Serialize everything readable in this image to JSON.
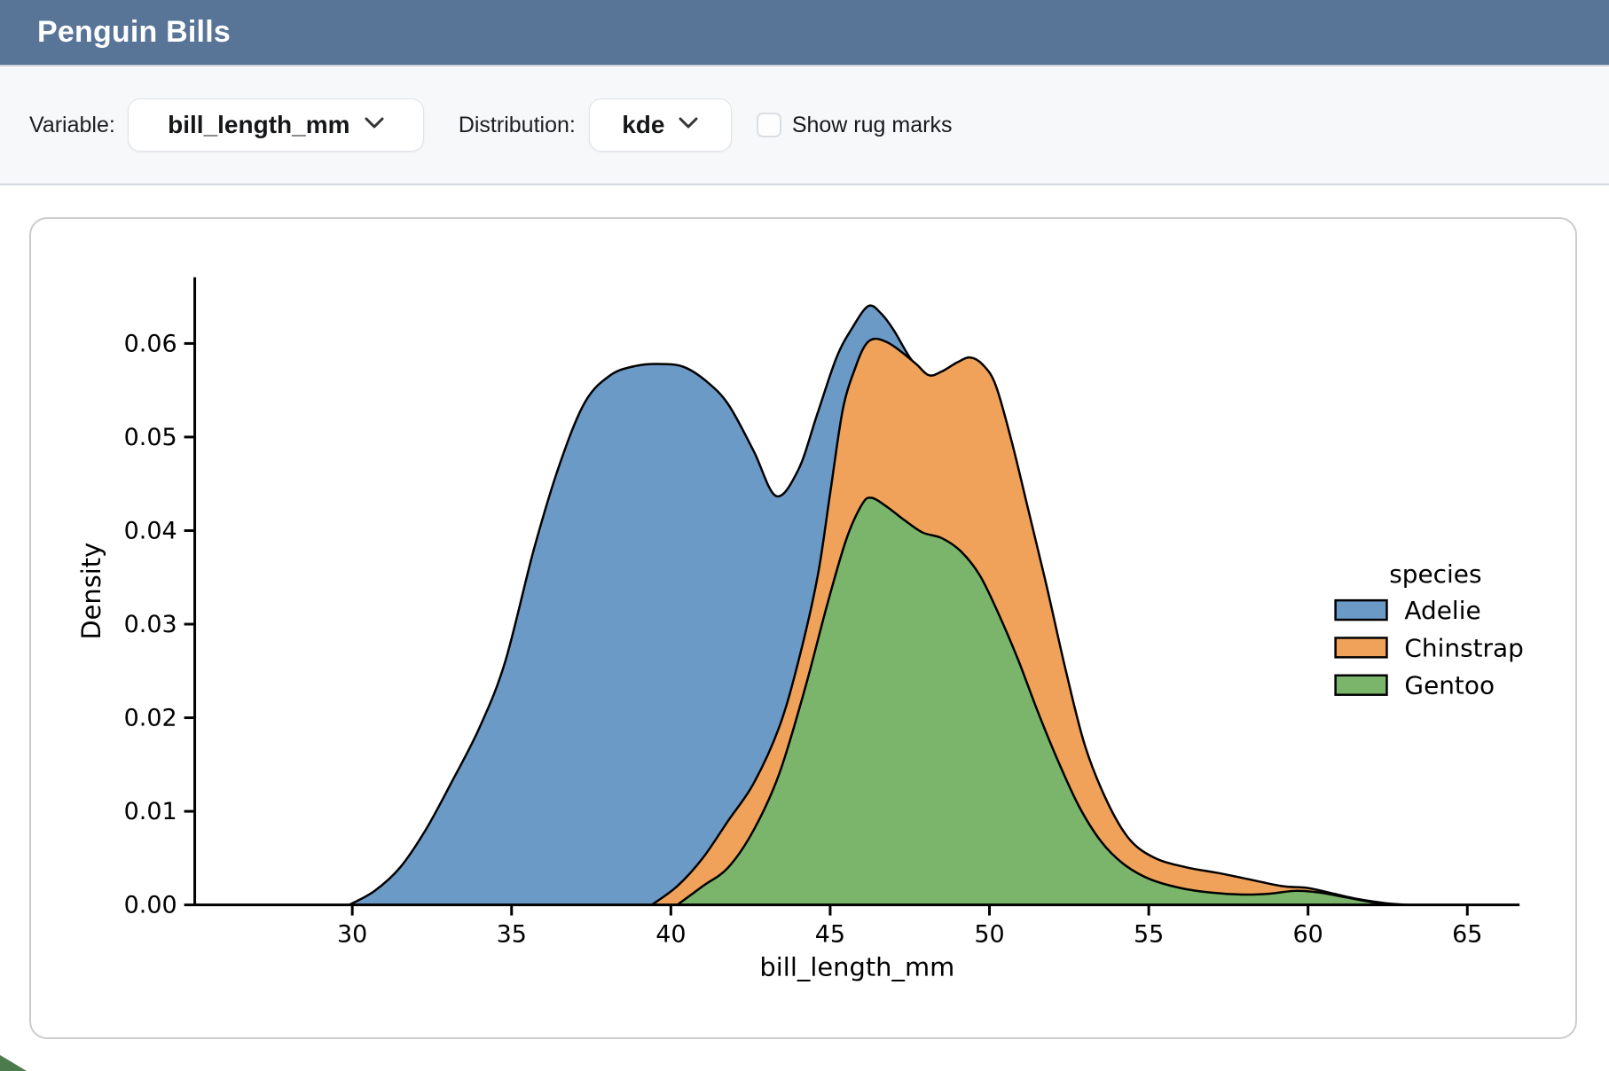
{
  "header": {
    "title": "Penguin Bills"
  },
  "controls": {
    "variable_label": "Variable:",
    "variable_value": "bill_length_mm",
    "distribution_label": "Distribution:",
    "distribution_value": "kde",
    "rug_label": "Show rug marks",
    "rug_checked": false
  },
  "colors": {
    "header_bg": "#587497",
    "adelie": "#6c9ac6",
    "chinstrap": "#f0a25b",
    "gentoo": "#7ab56b",
    "outline": "#000000"
  },
  "chart_data": {
    "type": "area",
    "subtype": "kde-density",
    "title": "",
    "xlabel": "bill_length_mm",
    "ylabel": "Density",
    "xlim": [
      25.1,
      66.6
    ],
    "ylim": [
      0,
      0.067
    ],
    "grid": false,
    "xticks": [
      30,
      35,
      40,
      45,
      50,
      55,
      60,
      65
    ],
    "ytick_labels": [
      "0.00",
      "0.01",
      "0.02",
      "0.03",
      "0.04",
      "0.05",
      "0.06"
    ],
    "legend": {
      "title": "species",
      "position": "center right",
      "entries": [
        "Adelie",
        "Chinstrap",
        "Gentoo"
      ]
    },
    "series": [
      {
        "name": "Adelie",
        "color": "#6c9ac6",
        "points": [
          [
            29.9,
            0
          ],
          [
            30.7,
            0.0015
          ],
          [
            31.5,
            0.004
          ],
          [
            32.3,
            0.008
          ],
          [
            33.1,
            0.013
          ],
          [
            34.0,
            0.019
          ],
          [
            34.8,
            0.026
          ],
          [
            35.7,
            0.038
          ],
          [
            36.5,
            0.047
          ],
          [
            37.3,
            0.0537
          ],
          [
            38.1,
            0.0566
          ],
          [
            38.9,
            0.0576
          ],
          [
            39.7,
            0.0578
          ],
          [
            40.4,
            0.0575
          ],
          [
            41.1,
            0.056
          ],
          [
            41.8,
            0.0535
          ],
          [
            42.6,
            0.0485
          ],
          [
            43.3,
            0.0437
          ],
          [
            44.0,
            0.0465
          ],
          [
            44.6,
            0.0525
          ],
          [
            45.2,
            0.0585
          ],
          [
            45.7,
            0.0617
          ],
          [
            46.2,
            0.064
          ],
          [
            46.6,
            0.0632
          ],
          [
            47.0,
            0.0614
          ],
          [
            47.5,
            0.0585
          ],
          [
            48.0,
            0.0565
          ],
          [
            48.6,
            0.0552
          ],
          [
            49.3,
            0.0495
          ],
          [
            50.0,
            0.0395
          ],
          [
            50.8,
            0.026
          ],
          [
            51.6,
            0.013
          ],
          [
            52.4,
            0.005
          ],
          [
            53.2,
            0.0015
          ],
          [
            54.0,
            0
          ]
        ]
      },
      {
        "name": "Chinstrap",
        "color": "#f0a25b",
        "points": [
          [
            39.4,
            0
          ],
          [
            40.2,
            0.002
          ],
          [
            41.0,
            0.005
          ],
          [
            41.8,
            0.009
          ],
          [
            42.6,
            0.013
          ],
          [
            43.4,
            0.019
          ],
          [
            44.0,
            0.026
          ],
          [
            44.6,
            0.035
          ],
          [
            45.0,
            0.044
          ],
          [
            45.4,
            0.053
          ],
          [
            45.8,
            0.0575
          ],
          [
            46.1,
            0.0598
          ],
          [
            46.4,
            0.0605
          ],
          [
            46.8,
            0.0601
          ],
          [
            47.2,
            0.0592
          ],
          [
            47.7,
            0.0578
          ],
          [
            48.1,
            0.0566
          ],
          [
            48.5,
            0.057
          ],
          [
            49.0,
            0.058
          ],
          [
            49.4,
            0.0585
          ],
          [
            49.8,
            0.0577
          ],
          [
            50.2,
            0.0555
          ],
          [
            50.7,
            0.0495
          ],
          [
            51.2,
            0.0425
          ],
          [
            51.8,
            0.034
          ],
          [
            52.4,
            0.025
          ],
          [
            53.0,
            0.017
          ],
          [
            53.7,
            0.011
          ],
          [
            54.4,
            0.007
          ],
          [
            55.2,
            0.005
          ],
          [
            56.2,
            0.004
          ],
          [
            57.2,
            0.0034
          ],
          [
            58.2,
            0.0027
          ],
          [
            59.2,
            0.002
          ],
          [
            60.0,
            0.0018
          ],
          [
            60.8,
            0.0012
          ],
          [
            61.6,
            0.0006
          ],
          [
            62.4,
            0.0002
          ],
          [
            63.1,
            0
          ]
        ]
      },
      {
        "name": "Gentoo",
        "color": "#7ab56b",
        "points": [
          [
            40.2,
            0
          ],
          [
            41.0,
            0.002
          ],
          [
            41.8,
            0.004
          ],
          [
            42.6,
            0.008
          ],
          [
            43.4,
            0.014
          ],
          [
            44.2,
            0.023
          ],
          [
            44.9,
            0.032
          ],
          [
            45.5,
            0.039
          ],
          [
            46.0,
            0.0428
          ],
          [
            46.3,
            0.0435
          ],
          [
            46.8,
            0.0425
          ],
          [
            47.3,
            0.0412
          ],
          [
            47.9,
            0.0398
          ],
          [
            48.5,
            0.0392
          ],
          [
            49.1,
            0.0378
          ],
          [
            49.7,
            0.0352
          ],
          [
            50.3,
            0.031
          ],
          [
            50.9,
            0.0262
          ],
          [
            51.5,
            0.0208
          ],
          [
            52.1,
            0.0158
          ],
          [
            52.8,
            0.0106
          ],
          [
            53.5,
            0.0068
          ],
          [
            54.2,
            0.0044
          ],
          [
            55.0,
            0.0028
          ],
          [
            56.0,
            0.0018
          ],
          [
            57.0,
            0.0013
          ],
          [
            58.0,
            0.0011
          ],
          [
            58.8,
            0.0012
          ],
          [
            59.6,
            0.0015
          ],
          [
            60.4,
            0.0013
          ],
          [
            61.2,
            0.0008
          ],
          [
            62.0,
            0.0003
          ],
          [
            62.7,
            0
          ]
        ]
      }
    ]
  }
}
